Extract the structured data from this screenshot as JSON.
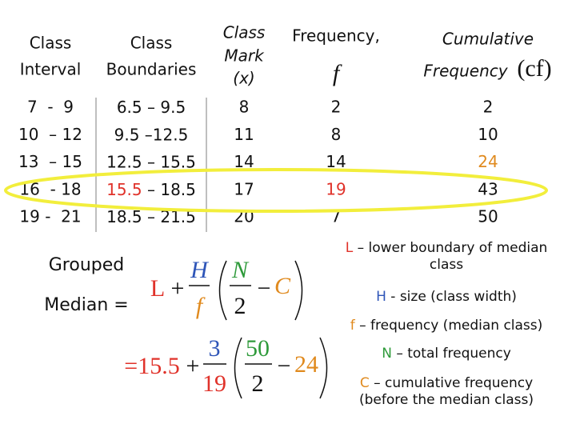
{
  "table": {
    "header": {
      "interval": [
        "Class",
        "Interval"
      ],
      "boundaries": [
        "Class",
        "Boundaries"
      ],
      "mark": [
        "Class",
        "Mark",
        "(x)"
      ],
      "frequency": [
        "Frequency,",
        "f"
      ],
      "cumulative": [
        "Cumulative",
        "Frequency",
        "(cf)"
      ]
    },
    "rows": [
      [
        "7  -  9",
        [
          "6.5",
          " – 9.5"
        ],
        "8",
        "2",
        "2"
      ],
      [
        "10  – 12",
        [
          "9.5",
          " –12.5"
        ],
        "11",
        "8",
        "10"
      ],
      [
        "13  – 15",
        [
          "12.5",
          " – 15.5"
        ],
        "14",
        "14",
        "24"
      ],
      [
        "16  - 18",
        [
          "15.5",
          " – 18.5"
        ],
        "17",
        "19",
        "43"
      ],
      [
        "19 -  21",
        [
          "18.5",
          " – 21.5"
        ],
        "20",
        "7",
        "50"
      ]
    ]
  },
  "label": [
    "Grouped",
    "Median ="
  ],
  "formula": {
    "L": "L",
    "plus": "+",
    "H": "H",
    "f": "f",
    "N": "N",
    "two": "2",
    "minus": "−",
    "C": "C"
  },
  "substitution": {
    "eq": "=15.5",
    "plus": "+",
    "H": "3",
    "f": "19",
    "N": "50",
    "two": "2",
    "minus": "−",
    "C": "24"
  },
  "definitions": [
    {
      "symbol": "L",
      "text": " – lower boundary of median class"
    },
    {
      "symbol": "H",
      "text": " - size (class width)"
    },
    {
      "symbol": "f",
      "text": " – frequency (median class)"
    },
    {
      "symbol": "N",
      "text": " – total frequency"
    },
    {
      "symbol": "C",
      "text": " – cumulative frequency (before the median class)"
    }
  ]
}
